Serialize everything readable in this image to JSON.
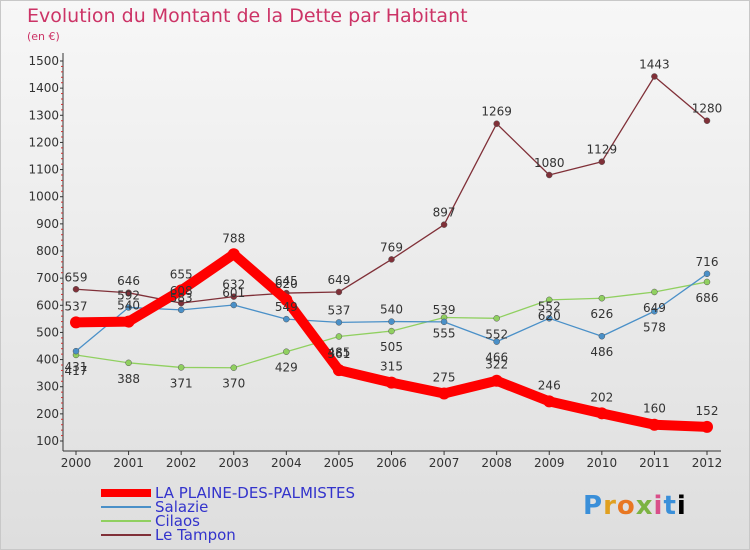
{
  "header": {
    "title": "Evolution du Montant de la Dette par Habitant",
    "unit": "(en €)"
  },
  "logo": {
    "text": "Proxiti"
  },
  "chart_data": {
    "type": "line",
    "title": "Evolution du Montant de la Dette par Habitant",
    "subtitle": "(en €)",
    "x": [
      "2000",
      "2001",
      "2002",
      "2003",
      "2004",
      "2005",
      "2006",
      "2007",
      "2008",
      "2009",
      "2010",
      "2011",
      "2012"
    ],
    "ylim": [
      100,
      1500
    ],
    "yticks": [
      100,
      200,
      300,
      400,
      500,
      600,
      700,
      800,
      900,
      1000,
      1100,
      1200,
      1300,
      1400,
      1500
    ],
    "grid": false,
    "legend_position": "bottom-left",
    "series": [
      {
        "name": "LA PLAINE-DES-PALMISTES",
        "color": "#ff0000",
        "values": [
          537,
          540,
          655,
          788,
          620,
          361,
          315,
          275,
          322,
          246,
          202,
          160,
          152
        ]
      },
      {
        "name": "Salazie",
        "color": "#4a90c8",
        "values": [
          431,
          592,
          583,
          601,
          549,
          537,
          540,
          539,
          466,
          552,
          486,
          578,
          716
        ]
      },
      {
        "name": "Cilaos",
        "color": "#90d060",
        "values": [
          417,
          388,
          371,
          370,
          429,
          485,
          505,
          555,
          552,
          620,
          626,
          649,
          686
        ]
      },
      {
        "name": "Le Tampon",
        "color": "#803038",
        "values": [
          659,
          646,
          608,
          632,
          645,
          649,
          769,
          897,
          1269,
          1080,
          1129,
          1443,
          1280
        ]
      }
    ]
  }
}
